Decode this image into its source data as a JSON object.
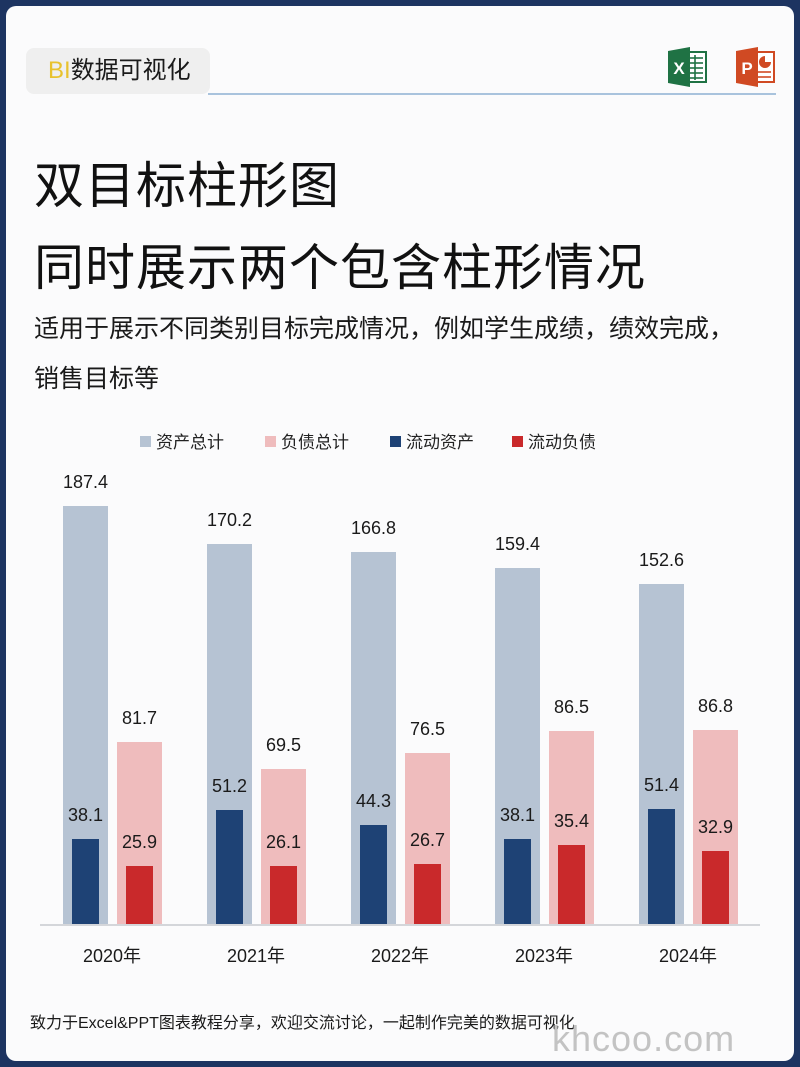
{
  "header": {
    "badge_prefix": "BI",
    "badge_text": "数据可视化",
    "icons": [
      "excel-icon",
      "powerpoint-icon"
    ],
    "excel_letter": "X",
    "ppt_letter": "P"
  },
  "title": {
    "line1": "双目标柱形图",
    "line2": "同时展示两个包含柱形情况"
  },
  "subtitle": "适用于展示不同类别目标完成情况，例如学生成绩，绩效完成，销售目标等",
  "colors": {
    "frame": "#1d3461",
    "asset_total": "#b6c3d3",
    "liability_total": "#efbcbd",
    "current_asset": "#1e4275",
    "current_liability": "#c9292b",
    "badge_accent": "#e8c22e"
  },
  "footer": {
    "text": "致力于Excel&PPT图表教程分享，欢迎交流讨论，一起制作完美的数据可视化",
    "watermark": "khcoo.com"
  },
  "chart_data": {
    "type": "bar",
    "title": "",
    "xlabel": "",
    "ylabel": "",
    "ylim": [
      0,
      200
    ],
    "grid": false,
    "legend_position": "top",
    "categories": [
      "2020年",
      "2021年",
      "2022年",
      "2023年",
      "2024年"
    ],
    "series": [
      {
        "name": "资产总计",
        "values": [
          187.4,
          170.2,
          166.8,
          159.4,
          152.6
        ],
        "color": "#b6c3d3"
      },
      {
        "name": "负债总计",
        "values": [
          81.7,
          69.5,
          76.5,
          86.5,
          86.8
        ],
        "color": "#efbcbd"
      },
      {
        "name": "流动资产",
        "values": [
          38.1,
          51.2,
          44.3,
          38.1,
          51.4
        ],
        "color": "#1e4275"
      },
      {
        "name": "流动负债",
        "values": [
          25.9,
          26.1,
          26.7,
          35.4,
          32.9
        ],
        "color": "#c9292b"
      }
    ],
    "annotations": "流动资产 overlaid inside 资产总计; 流动负债 overlaid inside 负债总计; data labels above each bar"
  }
}
